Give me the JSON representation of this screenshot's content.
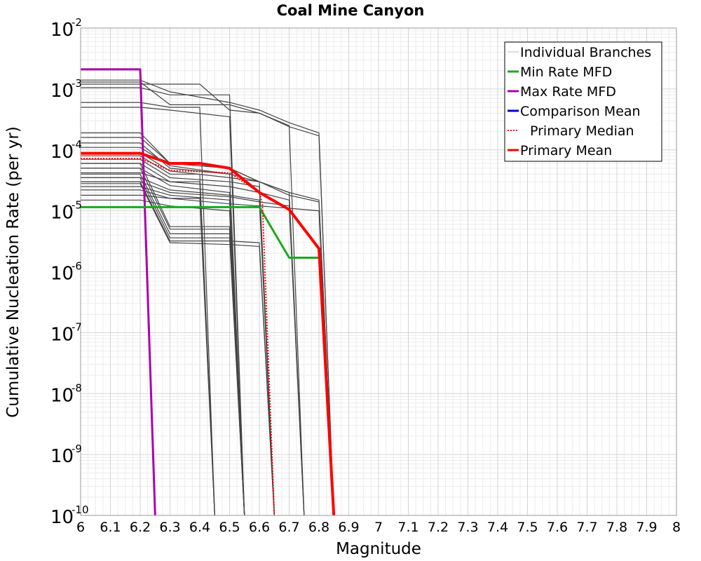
{
  "chart_data": {
    "type": "line",
    "title": "Coal Mine Canyon",
    "xlabel": "Magnitude",
    "ylabel": "Cumulative Nucleation Rate (per yr)",
    "y_scale": "log",
    "xlim": [
      6,
      8
    ],
    "ylim": [
      1e-10,
      0.01
    ],
    "grid": true,
    "legend_position": "top-right",
    "x_ticks": [
      "6",
      "6.1",
      "6.2",
      "6.3",
      "6.4",
      "6.5",
      "6.6",
      "6.7",
      "6.8",
      "6.9",
      "7",
      "7.1",
      "7.2",
      "7.3",
      "7.4",
      "7.5",
      "7.6",
      "7.7",
      "7.8",
      "7.9",
      "8"
    ],
    "y_ticks": [
      {
        "base": "10",
        "exp": "-2",
        "value": 0.01
      },
      {
        "base": "10",
        "exp": "-3",
        "value": 0.001
      },
      {
        "base": "10",
        "exp": "-4",
        "value": 0.0001
      },
      {
        "base": "10",
        "exp": "-5",
        "value": 1e-05
      },
      {
        "base": "10",
        "exp": "-6",
        "value": 1e-06
      },
      {
        "base": "10",
        "exp": "-7",
        "value": 1e-07
      },
      {
        "base": "10",
        "exp": "-8",
        "value": 1e-08
      },
      {
        "base": "10",
        "exp": "-9",
        "value": 1e-09
      },
      {
        "base": "10",
        "exp": "-10",
        "value": 1e-10
      }
    ],
    "series": [
      {
        "name": "Min Rate MFD",
        "color": "#1aaa1a",
        "dash": "solid",
        "x": [
          6.0,
          6.6,
          6.7,
          6.8
        ],
        "y": [
          1.15e-05,
          1.15e-05,
          1.7e-06,
          1.7e-06
        ]
      },
      {
        "name": "Max Rate MFD",
        "color": "#aa00aa",
        "dash": "solid",
        "x": [
          6.0,
          6.2,
          6.25
        ],
        "y": [
          0.0021,
          0.0021,
          1e-10
        ]
      },
      {
        "name": "Comparison Mean",
        "color": "#0000cc",
        "dash": "solid",
        "x": [],
        "y": []
      },
      {
        "name": "Primary Median",
        "color": "#ff0000",
        "dash": "dotted",
        "x": [
          6.0,
          6.2,
          6.3,
          6.5,
          6.6,
          6.61,
          6.65
        ],
        "y": [
          7.2e-05,
          7.2e-05,
          4.6e-05,
          4.2e-05,
          2e-05,
          1.3e-05,
          1e-10
        ]
      },
      {
        "name": "Primary Mean",
        "color": "#ff0000",
        "dash": "solid",
        "x": [
          6.0,
          6.2,
          6.3,
          6.4,
          6.5,
          6.6,
          6.7,
          6.8,
          6.85
        ],
        "y": [
          8.8e-05,
          8.8e-05,
          6e-05,
          6e-05,
          5e-05,
          2e-05,
          1.05e-05,
          2.4e-06,
          1e-10
        ]
      }
    ],
    "individual_branches": {
      "name": "Individual Branches",
      "color": "#444444",
      "curves": [
        {
          "x": [
            6.0,
            6.2,
            6.3,
            6.5,
            6.6,
            6.7,
            6.8,
            6.85
          ],
          "y": [
            0.0014,
            0.0014,
            0.0009,
            0.0006,
            0.00045,
            0.00028,
            0.00019,
            1e-10
          ]
        },
        {
          "x": [
            6.0,
            6.2,
            6.3,
            6.5,
            6.6,
            6.7,
            6.8,
            6.85
          ],
          "y": [
            0.0013,
            0.0013,
            0.00055,
            0.00055,
            0.0004,
            0.00024,
            0.00017,
            1e-10
          ]
        },
        {
          "x": [
            6.0,
            6.2,
            6.3,
            6.5,
            6.55
          ],
          "y": [
            0.00105,
            0.00105,
            0.0008,
            0.0008,
            1e-10
          ]
        },
        {
          "x": [
            6.0,
            6.4,
            6.5,
            6.6,
            6.7,
            6.75
          ],
          "y": [
            0.0012,
            0.0012,
            0.00045,
            0.0004,
            0.00025,
            1e-10
          ]
        },
        {
          "x": [
            6.0,
            6.2,
            6.3,
            6.4,
            6.45
          ],
          "y": [
            0.0006,
            0.0006,
            0.0005,
            0.0005,
            1e-10
          ]
        },
        {
          "x": [
            6.0,
            6.2,
            6.3,
            6.5,
            6.55
          ],
          "y": [
            0.0005,
            0.0005,
            0.00045,
            0.00035,
            1e-10
          ]
        },
        {
          "x": [
            6.0,
            6.2,
            6.3,
            6.5,
            6.6,
            6.65
          ],
          "y": [
            0.00019,
            0.00019,
            6e-05,
            5e-05,
            3e-05,
            1e-10
          ]
        },
        {
          "x": [
            6.0,
            6.2,
            6.3,
            6.5,
            6.6,
            6.7,
            6.8,
            6.85
          ],
          "y": [
            0.00016,
            0.00016,
            6e-05,
            5e-05,
            3e-05,
            2e-05,
            1.5e-05,
            1e-10
          ]
        },
        {
          "x": [
            6.0,
            6.2,
            6.3,
            6.5,
            6.6,
            6.7,
            6.8,
            6.85
          ],
          "y": [
            0.00013,
            0.00013,
            5e-05,
            4e-05,
            3e-05,
            1.8e-05,
            1.4e-05,
            1e-10
          ]
        },
        {
          "x": [
            6.0,
            6.2,
            6.3,
            6.5,
            6.55
          ],
          "y": [
            0.00011,
            0.00011,
            5.5e-05,
            4e-05,
            1e-10
          ]
        },
        {
          "x": [
            6.0,
            6.2,
            6.3,
            6.5,
            6.6,
            6.7,
            6.75
          ],
          "y": [
            9e-05,
            9e-05,
            4.5e-05,
            3.5e-05,
            3e-05,
            2e-05,
            1e-10
          ]
        },
        {
          "x": [
            6.0,
            6.2,
            6.3,
            6.4,
            6.45
          ],
          "y": [
            8e-05,
            8e-05,
            4e-05,
            4e-05,
            1e-10
          ]
        },
        {
          "x": [
            6.0,
            6.2,
            6.3,
            6.5,
            6.6,
            6.65
          ],
          "y": [
            7e-05,
            7e-05,
            3.5e-05,
            3e-05,
            2.5e-05,
            1e-10
          ]
        },
        {
          "x": [
            6.0,
            6.2,
            6.3,
            6.5,
            6.6,
            6.7,
            6.75
          ],
          "y": [
            6e-05,
            6e-05,
            3e-05,
            2.5e-05,
            2e-05,
            1.5e-05,
            1e-10
          ]
        },
        {
          "x": [
            6.0,
            6.2,
            6.3,
            6.5,
            6.55
          ],
          "y": [
            5e-05,
            5e-05,
            2.6e-05,
            2e-05,
            1e-10
          ]
        },
        {
          "x": [
            6.0,
            6.2,
            6.3,
            6.4,
            6.45
          ],
          "y": [
            4.2e-05,
            4.2e-05,
            3e-05,
            3e-05,
            1e-10
          ]
        },
        {
          "x": [
            6.0,
            6.2,
            6.3,
            6.5,
            6.6,
            6.65
          ],
          "y": [
            3.5e-05,
            3.5e-05,
            2.2e-05,
            1.8e-05,
            1.5e-05,
            1e-10
          ]
        },
        {
          "x": [
            6.0,
            6.2,
            6.3,
            6.5,
            6.6,
            6.7,
            6.75
          ],
          "y": [
            3e-05,
            3e-05,
            2e-05,
            1.7e-05,
            1.4e-05,
            1.2e-05,
            1e-10
          ]
        },
        {
          "x": [
            6.0,
            6.2,
            6.3,
            6.5,
            6.55
          ],
          "y": [
            2.5e-05,
            2.5e-05,
            1.8e-05,
            1.5e-05,
            1e-10
          ]
        },
        {
          "x": [
            6.0,
            6.2,
            6.3,
            6.5,
            6.6,
            6.7,
            6.8,
            6.85
          ],
          "y": [
            2.2e-05,
            2.2e-05,
            1.6e-05,
            1.3e-05,
            1.2e-05,
            1.1e-05,
            1e-05,
            1e-10
          ]
        },
        {
          "x": [
            6.0,
            6.2,
            6.3,
            6.4,
            6.45
          ],
          "y": [
            1.8e-05,
            1.8e-05,
            1.6e-05,
            1.6e-05,
            1e-10
          ]
        },
        {
          "x": [
            6.0,
            6.2,
            6.3,
            6.5,
            6.55
          ],
          "y": [
            1.5e-05,
            1.5e-05,
            1.2e-05,
            1e-05,
            1e-10
          ]
        },
        {
          "x": [
            6.0,
            6.2,
            6.3,
            6.5,
            6.55
          ],
          "y": [
            6e-05,
            6e-05,
            5.5e-06,
            5.5e-06,
            1e-10
          ]
        },
        {
          "x": [
            6.0,
            6.2,
            6.3,
            6.5,
            6.55
          ],
          "y": [
            5e-05,
            5e-05,
            5e-06,
            5e-06,
            1e-10
          ]
        },
        {
          "x": [
            6.0,
            6.2,
            6.3,
            6.5,
            6.55
          ],
          "y": [
            4e-05,
            4e-05,
            4.2e-06,
            4.2e-06,
            1e-10
          ]
        },
        {
          "x": [
            6.0,
            6.2,
            6.3,
            6.5,
            6.55
          ],
          "y": [
            3.5e-05,
            3.5e-05,
            3.6e-06,
            3.6e-06,
            1e-10
          ]
        },
        {
          "x": [
            6.0,
            6.2,
            6.3,
            6.5,
            6.6,
            6.65
          ],
          "y": [
            3e-05,
            3e-05,
            3.2e-06,
            3.2e-06,
            3e-06,
            1e-10
          ]
        },
        {
          "x": [
            6.0,
            6.2,
            6.3,
            6.5,
            6.6,
            6.65
          ],
          "y": [
            2.8e-05,
            2.8e-05,
            3e-06,
            2.8e-06,
            2.6e-06,
            1e-10
          ]
        }
      ]
    },
    "legend": [
      {
        "label": "Individual Branches",
        "color": "#bbbbbb",
        "style": "thin"
      },
      {
        "label": "Min Rate MFD",
        "color": "#1aaa1a",
        "style": "solid"
      },
      {
        "label": "Max Rate MFD",
        "color": "#aa00aa",
        "style": "solid"
      },
      {
        "label": "Comparison Mean",
        "color": "#0000cc",
        "style": "solid"
      },
      {
        "label": "Primary Median",
        "color": "#ff0000",
        "style": "dotted"
      },
      {
        "label": "Primary Mean",
        "color": "#ff0000",
        "style": "solid"
      }
    ]
  }
}
